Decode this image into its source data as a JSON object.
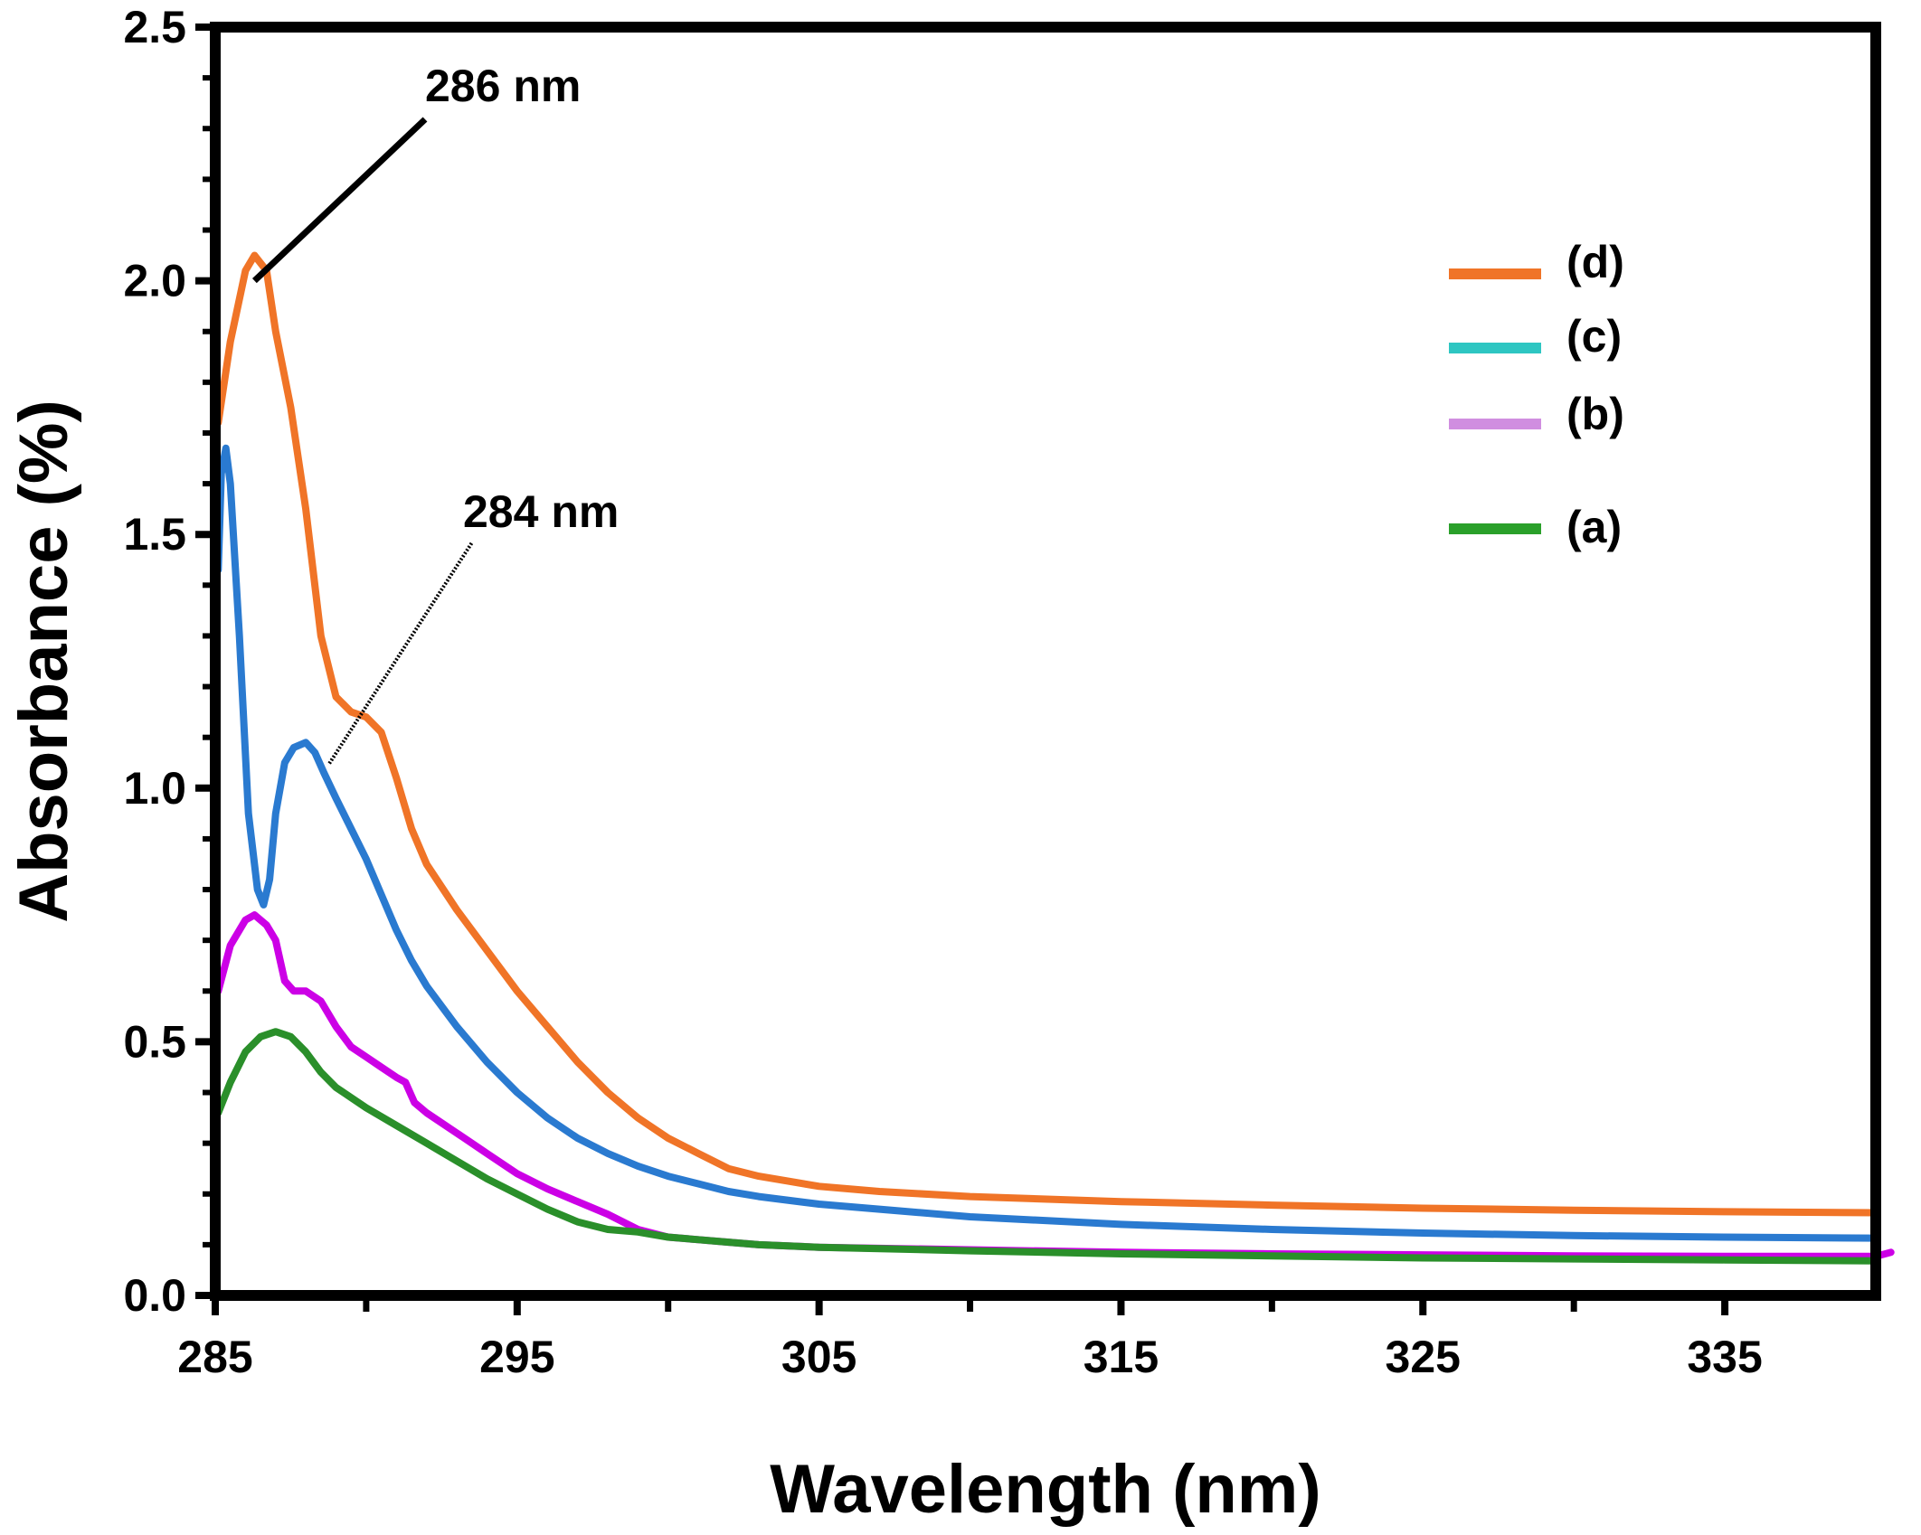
{
  "chart_data": {
    "type": "line",
    "xlabel": "Wavelength (nm)",
    "ylabel": "Absorbance (%)",
    "xlim": [
      285,
      340
    ],
    "ylim": [
      0.0,
      2.5
    ],
    "x_ticks": [
      "285",
      "295",
      "305",
      "315",
      "325",
      "335"
    ],
    "x_tick_values": [
      285,
      295,
      305,
      315,
      325,
      335
    ],
    "y_ticks": [
      "0.0",
      "0.5",
      "1.0",
      "1.5",
      "2.0",
      "2.5"
    ],
    "y_tick_values": [
      0.0,
      0.5,
      1.0,
      1.5,
      2.0,
      2.5
    ],
    "grid": false,
    "legend_position": "top-right",
    "series": [
      {
        "name": "(d)",
        "color": "#f07427",
        "legend_color": "#f07427",
        "x": [
          285.1,
          285.5,
          286.0,
          286.3,
          286.7,
          287.0,
          287.5,
          288.0,
          288.5,
          289.0,
          289.5,
          290.0,
          290.5,
          291.0,
          291.5,
          292.0,
          293.0,
          294.0,
          295.0,
          296.0,
          297.0,
          298.0,
          299.0,
          300.0,
          301.0,
          302.0,
          303.0,
          304.0,
          305.0,
          307.0,
          310.0,
          315.0,
          320.0,
          325.0,
          330.0,
          335.0,
          340.0
        ],
        "y": [
          1.72,
          1.88,
          2.02,
          2.05,
          2.02,
          1.9,
          1.75,
          1.55,
          1.3,
          1.18,
          1.15,
          1.14,
          1.11,
          1.02,
          0.92,
          0.85,
          0.76,
          0.68,
          0.6,
          0.53,
          0.46,
          0.4,
          0.35,
          0.31,
          0.28,
          0.25,
          0.235,
          0.225,
          0.215,
          0.205,
          0.195,
          0.185,
          0.178,
          0.172,
          0.168,
          0.165,
          0.163
        ]
      },
      {
        "name": "(c)",
        "color": "#2a7ad0",
        "legend_color": "#2ec6c2",
        "x": [
          285.1,
          285.2,
          285.35,
          285.5,
          285.8,
          286.1,
          286.4,
          286.6,
          286.8,
          287.0,
          287.3,
          287.6,
          288.0,
          288.3,
          288.6,
          289.0,
          289.5,
          290.0,
          290.5,
          291.0,
          291.5,
          292.0,
          293.0,
          294.0,
          295.0,
          296.0,
          297.0,
          298.0,
          299.0,
          300.0,
          301.0,
          302.0,
          303.0,
          305.0,
          307.0,
          310.0,
          315.0,
          320.0,
          325.0,
          330.0,
          335.0,
          340.0
        ],
        "y": [
          1.43,
          1.62,
          1.67,
          1.6,
          1.3,
          0.95,
          0.8,
          0.77,
          0.82,
          0.95,
          1.05,
          1.08,
          1.09,
          1.07,
          1.03,
          0.98,
          0.92,
          0.86,
          0.79,
          0.72,
          0.66,
          0.61,
          0.53,
          0.46,
          0.4,
          0.35,
          0.31,
          0.28,
          0.255,
          0.235,
          0.22,
          0.205,
          0.195,
          0.18,
          0.17,
          0.155,
          0.14,
          0.13,
          0.123,
          0.118,
          0.115,
          0.113
        ]
      },
      {
        "name": "(b)",
        "color": "#cc00e6",
        "legend_color": "#d08ee0",
        "x": [
          285.1,
          285.5,
          286.0,
          286.3,
          286.7,
          287.0,
          287.3,
          287.6,
          288.0,
          288.5,
          289.0,
          289.5,
          290.0,
          290.5,
          291.0,
          291.3,
          291.6,
          292.0,
          293.0,
          294.0,
          295.0,
          296.0,
          297.0,
          298.0,
          299.0,
          300.0,
          301.0,
          302.0,
          303.0,
          305.0,
          310.0,
          315.0,
          320.0,
          325.0,
          330.0,
          335.0,
          340.0,
          340.5
        ],
        "y": [
          0.6,
          0.69,
          0.74,
          0.75,
          0.73,
          0.7,
          0.62,
          0.6,
          0.6,
          0.58,
          0.53,
          0.49,
          0.47,
          0.45,
          0.43,
          0.42,
          0.38,
          0.36,
          0.32,
          0.28,
          0.24,
          0.21,
          0.185,
          0.16,
          0.13,
          0.115,
          0.11,
          0.105,
          0.1,
          0.095,
          0.09,
          0.085,
          0.082,
          0.08,
          0.078,
          0.077,
          0.077,
          0.085
        ]
      },
      {
        "name": "(a)",
        "color": "#2a8f2a",
        "legend_color": "#2aa02a",
        "x": [
          285.1,
          285.5,
          286.0,
          286.5,
          287.0,
          287.5,
          288.0,
          288.5,
          289.0,
          290.0,
          291.0,
          292.0,
          293.0,
          294.0,
          295.0,
          296.0,
          297.0,
          298.0,
          299.0,
          300.0,
          301.0,
          302.0,
          303.0,
          305.0,
          310.0,
          315.0,
          320.0,
          325.0,
          330.0,
          335.0,
          340.0
        ],
        "y": [
          0.36,
          0.42,
          0.48,
          0.51,
          0.52,
          0.51,
          0.48,
          0.44,
          0.41,
          0.37,
          0.335,
          0.3,
          0.265,
          0.23,
          0.2,
          0.17,
          0.145,
          0.13,
          0.125,
          0.115,
          0.11,
          0.105,
          0.1,
          0.095,
          0.088,
          0.082,
          0.078,
          0.074,
          0.072,
          0.07,
          0.068
        ]
      }
    ],
    "annotations": [
      {
        "text": "286 nm",
        "point_x": 286.3,
        "point_y": 2.0
      },
      {
        "text": "284 nm",
        "point_x": 288.6,
        "point_y": 1.07
      }
    ]
  }
}
